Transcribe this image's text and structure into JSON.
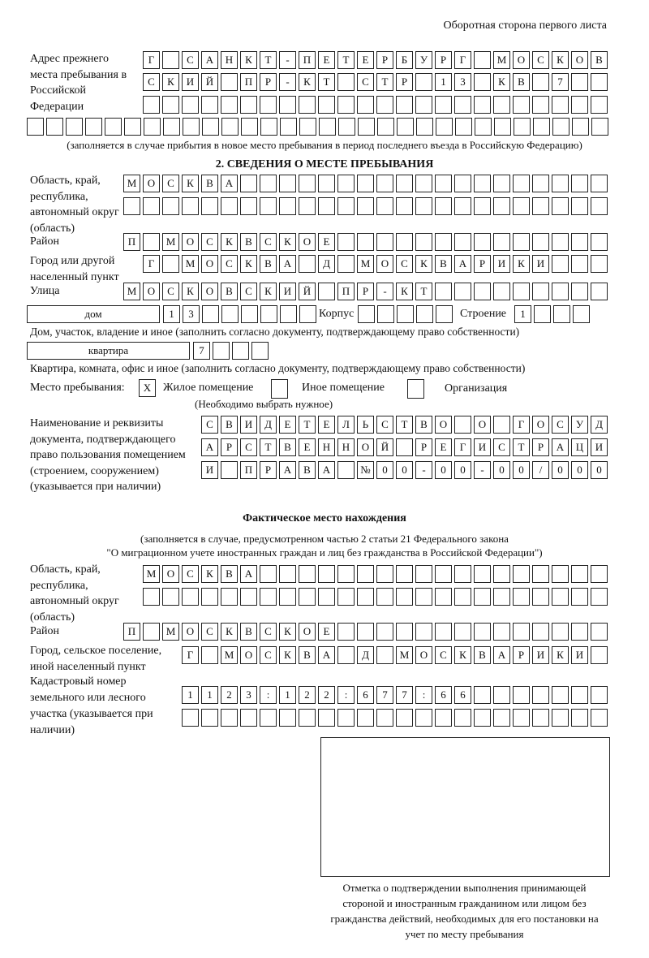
{
  "header": "Оборотная сторона первого листа",
  "prev_address": {
    "label": "Адрес прежнего места пребывания в Российской Федерации",
    "rows": [
      [
        "Г",
        "",
        "С",
        "А",
        "Н",
        "К",
        "Т",
        "-",
        "П",
        "Е",
        "Т",
        "Е",
        "Р",
        "Б",
        "У",
        "Р",
        "Г",
        "",
        "М",
        "О",
        "С",
        "К",
        "О",
        "В"
      ],
      [
        "С",
        "К",
        "И",
        "Й",
        "",
        "П",
        "Р",
        "-",
        "К",
        "Т",
        "",
        "С",
        "Т",
        "Р",
        "",
        "1",
        "3",
        "",
        "К",
        "В",
        "",
        "7",
        "",
        ""
      ],
      [
        "",
        "",
        "",
        "",
        "",
        "",
        "",
        "",
        "",
        "",
        "",
        "",
        "",
        "",
        "",
        "",
        "",
        "",
        "",
        "",
        "",
        "",
        "",
        ""
      ],
      [
        "",
        "",
        "",
        "",
        "",
        "",
        "",
        "",
        "",
        "",
        "",
        "",
        "",
        "",
        "",
        "",
        "",
        "",
        "",
        "",
        "",
        "",
        "",
        "",
        "",
        "",
        "",
        "",
        "",
        ""
      ]
    ],
    "note": "(заполняется в случае прибытия в новое место пребывания в период последнего въезда в Российскую Федерацию)"
  },
  "section2": {
    "title": "2. СВЕДЕНИЯ О МЕСТЕ ПРЕБЫВАНИЯ",
    "region_label": "Область, край, республика, автономный округ (область)",
    "region": [
      [
        "М",
        "О",
        "С",
        "К",
        "В",
        "А",
        "",
        "",
        "",
        "",
        "",
        "",
        "",
        "",
        "",
        "",
        "",
        "",
        "",
        "",
        "",
        "",
        "",
        "",
        ""
      ],
      [
        "",
        "",
        "",
        "",
        "",
        "",
        "",
        "",
        "",
        "",
        "",
        "",
        "",
        "",
        "",
        "",
        "",
        "",
        "",
        "",
        "",
        "",
        "",
        "",
        ""
      ]
    ],
    "district_label": "Район",
    "district": [
      [
        "П",
        "",
        "М",
        "О",
        "С",
        "К",
        "В",
        "С",
        "К",
        "О",
        "Е",
        "",
        "",
        "",
        "",
        "",
        "",
        "",
        "",
        "",
        "",
        "",
        "",
        "",
        ""
      ]
    ],
    "city_label": "Город или другой населенный пункт",
    "city": [
      [
        "Г",
        "",
        "М",
        "О",
        "С",
        "К",
        "В",
        "А",
        "",
        "Д",
        "",
        "М",
        "О",
        "С",
        "К",
        "В",
        "А",
        "Р",
        "И",
        "К",
        "И",
        "",
        "",
        ""
      ]
    ],
    "street_label": "Улица",
    "street": [
      [
        "М",
        "О",
        "С",
        "К",
        "О",
        "В",
        "С",
        "К",
        "И",
        "Й",
        "",
        "П",
        "Р",
        "-",
        "К",
        "Т",
        "",
        "",
        "",
        "",
        "",
        "",
        "",
        "",
        ""
      ]
    ],
    "house_type": "дом",
    "house": [
      [
        "1",
        "3",
        "",
        "",
        "",
        "",
        "",
        ""
      ]
    ],
    "korpus_label": "Корпус",
    "korpus": [
      [
        "",
        "",
        "",
        "",
        ""
      ]
    ],
    "building_label": "Строение",
    "building": [
      [
        "1",
        "",
        "",
        ""
      ]
    ],
    "house_note": "Дом, участок, владение и иное (заполнить согласно документу, подтверждающему право собственности)",
    "apt_type": "квартира",
    "apt": [
      [
        "7",
        "",
        "",
        ""
      ]
    ],
    "apt_note": "Квартира, комната, офис и иное (заполнить согласно документу, подтверждающему право собственности)",
    "stay_label": "Место пребывания:",
    "opt_living": {
      "mark": "X",
      "label": "Жилое помещение"
    },
    "opt_other": {
      "mark": "",
      "label": "Иное помещение"
    },
    "opt_org": {
      "mark": "",
      "label": "Организация"
    },
    "choose_note": "(Необходимо выбрать нужное)",
    "doc_label": "Наименование и реквизиты документа, подтверждающего право пользования помещением (строением, сооружением) (указывается при наличии)",
    "doc": [
      [
        "С",
        "В",
        "И",
        "Д",
        "Е",
        "Т",
        "Е",
        "Л",
        "Ь",
        "С",
        "Т",
        "В",
        "О",
        "",
        "О",
        "",
        "Г",
        "О",
        "С",
        "У",
        "Д"
      ],
      [
        "А",
        "Р",
        "С",
        "Т",
        "В",
        "Е",
        "Н",
        "Н",
        "О",
        "Й",
        "",
        "Р",
        "Е",
        "Г",
        "И",
        "С",
        "Т",
        "Р",
        "А",
        "Ц",
        "И"
      ],
      [
        "И",
        "",
        "П",
        "Р",
        "А",
        "В",
        "А",
        "",
        "№",
        "0",
        "0",
        "-",
        "0",
        "0",
        "-",
        "0",
        "0",
        "/",
        "0",
        "0",
        "0"
      ]
    ]
  },
  "actual": {
    "title": "Фактическое место нахождения",
    "note1": "(заполняется в случае, предусмотренном частью 2 статьи 21 Федерального закона",
    "note2": "\"О миграционном учете иностранных граждан и лиц без гражданства в Российской Федерации\")",
    "region_label": "Область, край, республика, автономный округ (область)",
    "region": [
      [
        "М",
        "О",
        "С",
        "К",
        "В",
        "А",
        "",
        "",
        "",
        "",
        "",
        "",
        "",
        "",
        "",
        "",
        "",
        "",
        "",
        "",
        "",
        "",
        "",
        ""
      ],
      [
        "",
        "",
        "",
        "",
        "",
        "",
        "",
        "",
        "",
        "",
        "",
        "",
        "",
        "",
        "",
        "",
        "",
        "",
        "",
        "",
        "",
        "",
        "",
        ""
      ]
    ],
    "district_label": "Район",
    "district": [
      [
        "П",
        "",
        "М",
        "О",
        "С",
        "К",
        "В",
        "С",
        "К",
        "О",
        "Е",
        "",
        "",
        "",
        "",
        "",
        "",
        "",
        "",
        "",
        "",
        "",
        "",
        "",
        ""
      ]
    ],
    "city_label": "Город, сельское поселение, иной населенный пункт",
    "city": [
      [
        "Г",
        "",
        "М",
        "О",
        "С",
        "К",
        "В",
        "А",
        "",
        "Д",
        "",
        "М",
        "О",
        "С",
        "К",
        "В",
        "А",
        "Р",
        "И",
        "К",
        "И",
        ""
      ]
    ],
    "cadastre_label": "Кадастровый номер земельного или лесного участка (указывается при наличии)",
    "cadastre": [
      [
        "1",
        "1",
        "2",
        "3",
        ":",
        "1",
        "2",
        "2",
        ":",
        "6",
        "7",
        "7",
        ":",
        "6",
        "6",
        "",
        "",
        "",
        "",
        "",
        "",
        ""
      ],
      [
        "",
        "",
        "",
        "",
        "",
        "",
        "",
        "",
        "",
        "",
        "",
        "",
        "",
        "",
        "",
        "",
        "",
        "",
        "",
        "",
        "",
        ""
      ]
    ]
  },
  "stamp_caption": "Отметка о подтверждении выполнения принимающей стороной и иностранным гражданином или лицом без гражданства действий, необходимых для его постановки на учет по месту пребывания"
}
